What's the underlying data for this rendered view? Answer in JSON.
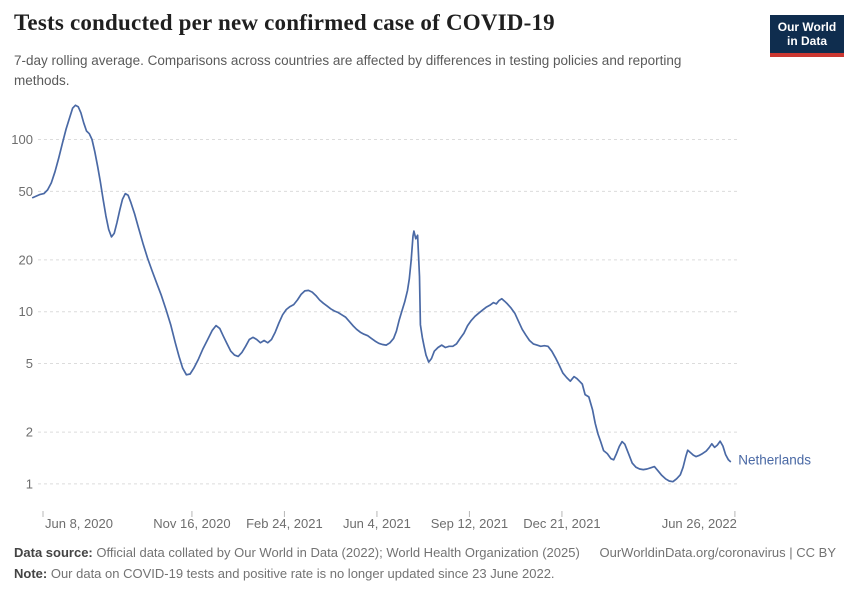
{
  "header": {
    "title": "Tests conducted per new confirmed case of COVID-19",
    "subtitle": "7-day rolling average. Comparisons across countries are affected by differences in testing policies and reporting methods.",
    "logo": {
      "line1": "Our World",
      "line2": "in Data",
      "bg_color": "#0f2d4e",
      "bar_color": "#cb3731"
    }
  },
  "footer": {
    "data_source_label": "Data source:",
    "data_source_text": " Official data collated by Our World in Data (2022); World Health Organization (2025)",
    "link_text": "OurWorldinData.org/coronavirus | CC BY",
    "note_label": "Note:",
    "note_text": " Our data on COVID-19 tests and positive rate is no longer updated since 23 June 2022."
  },
  "chart_data": {
    "type": "line",
    "title": "Tests conducted per new confirmed case of COVID-19",
    "xlabel": "",
    "ylabel": "",
    "yscale": "log",
    "grid": true,
    "ylim": [
      1,
      160
    ],
    "y_ticks": [
      1,
      2,
      5,
      10,
      20,
      50,
      100
    ],
    "x_ticks": [
      {
        "label": "Jun 8, 2020",
        "date": "2020-06-08"
      },
      {
        "label": "Nov 16, 2020",
        "date": "2020-11-16"
      },
      {
        "label": "Feb 24, 2021",
        "date": "2021-02-24"
      },
      {
        "label": "Jun 4, 2021",
        "date": "2021-06-04"
      },
      {
        "label": "Sep 12, 2021",
        "date": "2021-09-12"
      },
      {
        "label": "Dec 21, 2021",
        "date": "2021-12-21"
      },
      {
        "label": "Jun 26, 2022",
        "date": "2022-06-26"
      }
    ],
    "colors": {
      "line": "#4a69a5",
      "grid": "#dcdcdc",
      "axis_text": "#6e6e6e",
      "tick_mark": "#b8b8b8"
    },
    "legend_position": "right-of-line-end",
    "series": [
      {
        "name": "Netherlands",
        "points": [
          [
            "2020-05-28",
            46
          ],
          [
            "2020-06-01",
            47
          ],
          [
            "2020-06-05",
            48
          ],
          [
            "2020-06-09",
            48.5
          ],
          [
            "2020-06-13",
            51
          ],
          [
            "2020-06-17",
            56
          ],
          [
            "2020-06-21",
            65
          ],
          [
            "2020-06-25",
            78
          ],
          [
            "2020-06-29",
            95
          ],
          [
            "2020-07-03",
            115
          ],
          [
            "2020-07-07",
            135
          ],
          [
            "2020-07-10",
            152
          ],
          [
            "2020-07-13",
            158
          ],
          [
            "2020-07-16",
            155
          ],
          [
            "2020-07-19",
            143
          ],
          [
            "2020-07-22",
            125
          ],
          [
            "2020-07-25",
            112
          ],
          [
            "2020-07-28",
            108
          ],
          [
            "2020-07-31",
            100
          ],
          [
            "2020-08-03",
            85
          ],
          [
            "2020-08-06",
            70
          ],
          [
            "2020-08-09",
            57
          ],
          [
            "2020-08-12",
            45
          ],
          [
            "2020-08-15",
            36
          ],
          [
            "2020-08-18",
            30
          ],
          [
            "2020-08-21",
            27.2
          ],
          [
            "2020-08-24",
            28.5
          ],
          [
            "2020-08-27",
            33
          ],
          [
            "2020-08-30",
            39
          ],
          [
            "2020-09-02",
            45
          ],
          [
            "2020-09-05",
            48.5
          ],
          [
            "2020-09-08",
            47.5
          ],
          [
            "2020-09-11",
            43
          ],
          [
            "2020-09-15",
            37
          ],
          [
            "2020-09-19",
            31
          ],
          [
            "2020-09-24",
            25
          ],
          [
            "2020-09-29",
            20.5
          ],
          [
            "2020-10-04",
            17.2
          ],
          [
            "2020-10-09",
            14.6
          ],
          [
            "2020-10-14",
            12.4
          ],
          [
            "2020-10-19",
            10.3
          ],
          [
            "2020-10-24",
            8.4
          ],
          [
            "2020-10-29",
            6.6
          ],
          [
            "2020-11-02",
            5.5
          ],
          [
            "2020-11-06",
            4.7
          ],
          [
            "2020-11-10",
            4.3
          ],
          [
            "2020-11-14",
            4.35
          ],
          [
            "2020-11-18",
            4.7
          ],
          [
            "2020-11-23",
            5.3
          ],
          [
            "2020-11-28",
            6.1
          ],
          [
            "2020-12-03",
            6.9
          ],
          [
            "2020-12-08",
            7.8
          ],
          [
            "2020-12-12",
            8.3
          ],
          [
            "2020-12-16",
            8.0
          ],
          [
            "2020-12-20",
            7.2
          ],
          [
            "2020-12-24",
            6.5
          ],
          [
            "2020-12-28",
            5.9
          ],
          [
            "2021-01-01",
            5.6
          ],
          [
            "2021-01-05",
            5.5
          ],
          [
            "2021-01-09",
            5.8
          ],
          [
            "2021-01-13",
            6.3
          ],
          [
            "2021-01-17",
            6.9
          ],
          [
            "2021-01-21",
            7.1
          ],
          [
            "2021-01-25",
            6.9
          ],
          [
            "2021-01-29",
            6.6
          ],
          [
            "2021-02-02",
            6.8
          ],
          [
            "2021-02-06",
            6.6
          ],
          [
            "2021-02-10",
            6.9
          ],
          [
            "2021-02-14",
            7.6
          ],
          [
            "2021-02-18",
            8.6
          ],
          [
            "2021-02-22",
            9.6
          ],
          [
            "2021-02-26",
            10.3
          ],
          [
            "2021-03-02",
            10.7
          ],
          [
            "2021-03-06",
            11.0
          ],
          [
            "2021-03-10",
            11.7
          ],
          [
            "2021-03-14",
            12.6
          ],
          [
            "2021-03-18",
            13.2
          ],
          [
            "2021-03-22",
            13.3
          ],
          [
            "2021-03-26",
            13.0
          ],
          [
            "2021-03-30",
            12.4
          ],
          [
            "2021-04-03",
            11.7
          ],
          [
            "2021-04-07",
            11.2
          ],
          [
            "2021-04-11",
            10.8
          ],
          [
            "2021-04-15",
            10.4
          ],
          [
            "2021-04-19",
            10.1
          ],
          [
            "2021-04-23",
            9.9
          ],
          [
            "2021-04-27",
            9.6
          ],
          [
            "2021-05-01",
            9.3
          ],
          [
            "2021-05-05",
            8.8
          ],
          [
            "2021-05-09",
            8.3
          ],
          [
            "2021-05-13",
            7.9
          ],
          [
            "2021-05-17",
            7.6
          ],
          [
            "2021-05-21",
            7.4
          ],
          [
            "2021-05-25",
            7.25
          ],
          [
            "2021-05-29",
            7.0
          ],
          [
            "2021-06-02",
            6.75
          ],
          [
            "2021-06-06",
            6.55
          ],
          [
            "2021-06-10",
            6.45
          ],
          [
            "2021-06-14",
            6.4
          ],
          [
            "2021-06-18",
            6.6
          ],
          [
            "2021-06-22",
            7.0
          ],
          [
            "2021-06-25",
            7.7
          ],
          [
            "2021-06-28",
            8.9
          ],
          [
            "2021-07-01",
            10.1
          ],
          [
            "2021-07-04",
            11.4
          ],
          [
            "2021-07-07",
            13.3
          ],
          [
            "2021-07-09",
            15.5
          ],
          [
            "2021-07-11",
            20
          ],
          [
            "2021-07-13",
            27.5
          ],
          [
            "2021-07-14",
            29.4
          ],
          [
            "2021-07-16",
            26.5
          ],
          [
            "2021-07-18",
            27.8
          ],
          [
            "2021-07-20",
            16
          ],
          [
            "2021-07-21",
            8.4
          ],
          [
            "2021-07-23",
            7.1
          ],
          [
            "2021-07-25",
            6.3
          ],
          [
            "2021-07-27",
            5.6
          ],
          [
            "2021-07-30",
            5.1
          ],
          [
            "2021-08-02",
            5.35
          ],
          [
            "2021-08-05",
            5.9
          ],
          [
            "2021-08-09",
            6.2
          ],
          [
            "2021-08-13",
            6.4
          ],
          [
            "2021-08-17",
            6.2
          ],
          [
            "2021-08-21",
            6.3
          ],
          [
            "2021-08-25",
            6.3
          ],
          [
            "2021-08-29",
            6.5
          ],
          [
            "2021-09-02",
            7.0
          ],
          [
            "2021-09-06",
            7.5
          ],
          [
            "2021-09-10",
            8.3
          ],
          [
            "2021-09-14",
            8.9
          ],
          [
            "2021-09-18",
            9.4
          ],
          [
            "2021-09-22",
            9.8
          ],
          [
            "2021-09-26",
            10.2
          ],
          [
            "2021-09-30",
            10.6
          ],
          [
            "2021-10-04",
            10.9
          ],
          [
            "2021-10-08",
            11.3
          ],
          [
            "2021-10-11",
            11.1
          ],
          [
            "2021-10-14",
            11.6
          ],
          [
            "2021-10-17",
            11.9
          ],
          [
            "2021-10-20",
            11.5
          ],
          [
            "2021-10-23",
            11.1
          ],
          [
            "2021-10-27",
            10.5
          ],
          [
            "2021-10-31",
            9.8
          ],
          [
            "2021-11-04",
            8.8
          ],
          [
            "2021-11-08",
            7.9
          ],
          [
            "2021-11-12",
            7.3
          ],
          [
            "2021-11-16",
            6.8
          ],
          [
            "2021-11-20",
            6.5
          ],
          [
            "2021-11-24",
            6.4
          ],
          [
            "2021-11-28",
            6.3
          ],
          [
            "2021-12-02",
            6.35
          ],
          [
            "2021-12-06",
            6.3
          ],
          [
            "2021-12-10",
            5.9
          ],
          [
            "2021-12-14",
            5.4
          ],
          [
            "2021-12-18",
            4.9
          ],
          [
            "2021-12-22",
            4.4
          ],
          [
            "2021-12-26",
            4.15
          ],
          [
            "2021-12-30",
            3.95
          ],
          [
            "2022-01-03",
            4.2
          ],
          [
            "2022-01-06",
            4.1
          ],
          [
            "2022-01-09",
            3.95
          ],
          [
            "2022-01-12",
            3.8
          ],
          [
            "2022-01-15",
            3.3
          ],
          [
            "2022-01-19",
            3.2
          ],
          [
            "2022-01-23",
            2.7
          ],
          [
            "2022-01-26",
            2.25
          ],
          [
            "2022-01-29",
            1.95
          ],
          [
            "2022-02-01",
            1.75
          ],
          [
            "2022-02-04",
            1.56
          ],
          [
            "2022-02-08",
            1.5
          ],
          [
            "2022-02-12",
            1.4
          ],
          [
            "2022-02-15",
            1.38
          ],
          [
            "2022-02-18",
            1.5
          ],
          [
            "2022-02-21",
            1.65
          ],
          [
            "2022-02-24",
            1.76
          ],
          [
            "2022-02-27",
            1.7
          ],
          [
            "2022-03-03",
            1.5
          ],
          [
            "2022-03-07",
            1.32
          ],
          [
            "2022-03-11",
            1.25
          ],
          [
            "2022-03-15",
            1.22
          ],
          [
            "2022-03-19",
            1.21
          ],
          [
            "2022-03-23",
            1.22
          ],
          [
            "2022-03-27",
            1.24
          ],
          [
            "2022-03-31",
            1.26
          ],
          [
            "2022-04-04",
            1.19
          ],
          [
            "2022-04-08",
            1.12
          ],
          [
            "2022-04-12",
            1.07
          ],
          [
            "2022-04-16",
            1.04
          ],
          [
            "2022-04-20",
            1.03
          ],
          [
            "2022-04-24",
            1.07
          ],
          [
            "2022-04-28",
            1.13
          ],
          [
            "2022-05-01",
            1.25
          ],
          [
            "2022-05-04",
            1.45
          ],
          [
            "2022-05-06",
            1.57
          ],
          [
            "2022-05-09",
            1.52
          ],
          [
            "2022-05-12",
            1.47
          ],
          [
            "2022-05-15",
            1.44
          ],
          [
            "2022-05-18",
            1.46
          ],
          [
            "2022-05-22",
            1.5
          ],
          [
            "2022-05-26",
            1.55
          ],
          [
            "2022-05-29",
            1.62
          ],
          [
            "2022-06-01",
            1.71
          ],
          [
            "2022-06-04",
            1.63
          ],
          [
            "2022-06-07",
            1.68
          ],
          [
            "2022-06-10",
            1.77
          ],
          [
            "2022-06-13",
            1.66
          ],
          [
            "2022-06-16",
            1.48
          ],
          [
            "2022-06-19",
            1.38
          ],
          [
            "2022-06-21",
            1.35
          ]
        ]
      }
    ]
  }
}
